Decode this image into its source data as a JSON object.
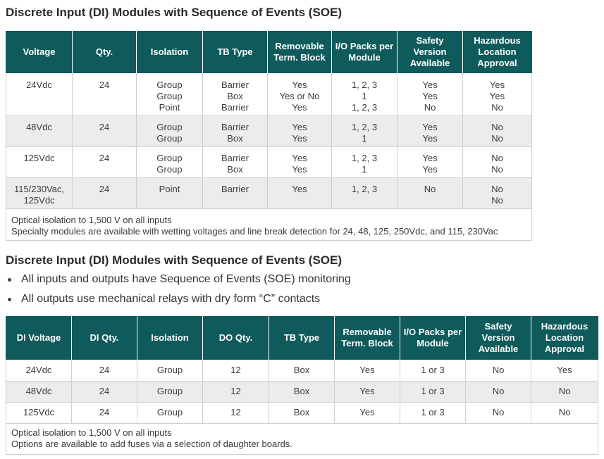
{
  "section1": {
    "title": "Discrete Input (DI) Modules with Sequence of Events (SOE)",
    "headers": [
      "Voltage",
      "Qty.",
      "Isolation",
      "TB Type",
      "Removable Term. Block",
      "I/O Packs per Module",
      "Safety Version Available",
      "Hazardous Location Approval"
    ],
    "rows": [
      [
        "24Vdc",
        "24",
        "Group\nGroup\nPoint",
        "Barrier\nBox\nBarrier",
        "Yes\nYes or No\nYes",
        "1, 2, 3\n1\n1, 2, 3",
        "Yes\nYes\nNo",
        "Yes\nYes\nNo"
      ],
      [
        "48Vdc",
        "24",
        "Group\nGroup",
        "Barrier\nBox",
        "Yes\nYes",
        "1, 2, 3\n1",
        "Yes\nYes",
        "No\nNo"
      ],
      [
        "125Vdc",
        "24",
        "Group\nGroup",
        "Barrier\nBox",
        "Yes\nYes",
        "1, 2, 3\n1",
        "Yes\nYes",
        "No\nNo"
      ],
      [
        "115/230Vac,\n125Vdc",
        "24",
        "Point",
        "Barrier",
        "Yes",
        "1, 2, 3",
        "No",
        "No\nNo"
      ]
    ],
    "notes": [
      "Optical isolation to 1,500 V on all inputs",
      "Specialty modules are available with wetting voltages and line break detection for 24, 48, 125, 250Vdc, and 115, 230Vac"
    ]
  },
  "section2": {
    "title": "Discrete Input (DI) Modules with Sequence of Events (SOE)",
    "bullets": [
      "All inputs and outputs have Sequence of Events (SOE) monitoring",
      "All outputs use mechanical relays with dry form “C” contacts"
    ],
    "headers": [
      "DI Voltage",
      "DI Qty.",
      "Isolation",
      "DO Qty.",
      "TB Type",
      "Removable Term. Block",
      "I/O Packs per Module",
      "Safety Version Available",
      "Hazardous Location Approval"
    ],
    "rows": [
      [
        "24Vdc",
        "24",
        "Group",
        "12",
        "Box",
        "Yes",
        "1 or 3",
        "No",
        "Yes"
      ],
      [
        "48Vdc",
        "24",
        "Group",
        "12",
        "Box",
        "Yes",
        "1 or 3",
        "No",
        "No"
      ],
      [
        "125Vdc",
        "24",
        "Group",
        "12",
        "Box",
        "Yes",
        "1 or 3",
        "No",
        "No"
      ]
    ],
    "notes": [
      "Optical isolation to 1,500 V on all inputs",
      "Options are available to add fuses via a selection of daughter boards."
    ]
  }
}
